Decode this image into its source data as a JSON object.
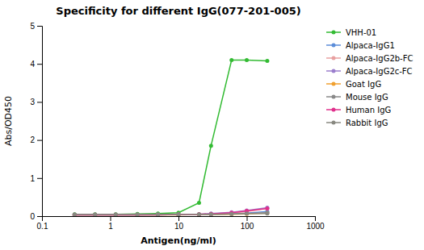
{
  "chart_data": {
    "type": "line",
    "title": "Specificity for different IgG(077-201-005)",
    "xlabel": "Antigen(ng/ml)",
    "ylabel": "Abs/OD450",
    "log": "x",
    "grid": false,
    "legend": "right",
    "marker": "circle",
    "xlim": [
      0.1,
      1000
    ],
    "ylim": [
      0,
      5
    ],
    "xticks": [
      0.1,
      1,
      10,
      100,
      1000
    ],
    "yticks": [
      0,
      1,
      2,
      3,
      4,
      5
    ],
    "x": [
      0.3,
      0.6,
      1.2,
      2.5,
      5,
      10,
      20,
      30,
      60,
      100,
      200
    ],
    "series": [
      {
        "name": "VHH-01",
        "color": "#33bb33",
        "values": [
          0.05,
          0.05,
          0.05,
          0.06,
          0.07,
          0.09,
          0.35,
          1.85,
          4.1,
          4.1,
          4.08
        ]
      },
      {
        "name": "Alpaca-IgG1",
        "color": "#5b8dd9",
        "values": [
          0.03,
          0.03,
          0.03,
          0.03,
          0.03,
          0.04,
          0.04,
          0.05,
          0.06,
          0.08,
          0.12
        ]
      },
      {
        "name": "Alpaca-IgG2b-FC",
        "color": "#e8a0a0",
        "values": [
          0.03,
          0.03,
          0.03,
          0.03,
          0.03,
          0.04,
          0.05,
          0.06,
          0.08,
          0.12,
          0.2
        ]
      },
      {
        "name": "Alpaca-IgG2c-FC",
        "color": "#9b7ecd",
        "values": [
          0.03,
          0.03,
          0.03,
          0.03,
          0.04,
          0.04,
          0.05,
          0.07,
          0.1,
          0.15,
          0.22
        ]
      },
      {
        "name": "Goat IgG",
        "color": "#f0a030",
        "values": [
          0.03,
          0.03,
          0.03,
          0.03,
          0.03,
          0.03,
          0.04,
          0.04,
          0.05,
          0.06,
          0.08
        ]
      },
      {
        "name": "Mouse IgG",
        "color": "#888888",
        "values": [
          0.04,
          0.04,
          0.04,
          0.04,
          0.04,
          0.04,
          0.05,
          0.05,
          0.06,
          0.07,
          0.09
        ]
      },
      {
        "name": "Human IgG",
        "color": "#e0308c",
        "values": [
          0.03,
          0.03,
          0.03,
          0.03,
          0.03,
          0.04,
          0.05,
          0.06,
          0.09,
          0.14,
          0.2
        ]
      },
      {
        "name": "Rabbit IgG",
        "color": "#888880",
        "values": [
          0.04,
          0.04,
          0.04,
          0.04,
          0.04,
          0.04,
          0.05,
          0.05,
          0.06,
          0.07,
          0.07
        ]
      }
    ]
  }
}
